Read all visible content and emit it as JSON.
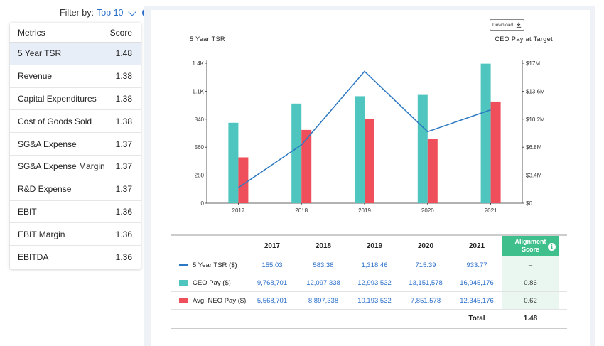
{
  "filter": {
    "label": "Filter by:",
    "value": "Top 10",
    "info": "i"
  },
  "metrics": {
    "header_metric": "Metrics",
    "header_score": "Score",
    "rows": [
      {
        "name": "5 Year TSR",
        "score": "1.48"
      },
      {
        "name": "Revenue",
        "score": "1.38"
      },
      {
        "name": "Capital Expenditures",
        "score": "1.38"
      },
      {
        "name": "Cost of Goods Sold",
        "score": "1.38"
      },
      {
        "name": "SG&A Expense",
        "score": "1.37"
      },
      {
        "name": "SG&A Expense Margin",
        "score": "1.37"
      },
      {
        "name": "R&D Expense",
        "score": "1.37"
      },
      {
        "name": "EBIT",
        "score": "1.36"
      },
      {
        "name": "EBIT Margin",
        "score": "1.36"
      },
      {
        "name": "EBITDA",
        "score": "1.36"
      }
    ]
  },
  "download_label": "Download",
  "chart_titles": {
    "left": "5 Year TSR",
    "right": "CEO Pay at Target"
  },
  "chart_data": {
    "type": "bar",
    "categories": [
      "2017",
      "2018",
      "2019",
      "2020",
      "2021"
    ],
    "left_axis": {
      "ticks": [
        "0",
        "280",
        "560",
        "840",
        "1.1K",
        "1.4K"
      ],
      "range": [
        0,
        1400
      ]
    },
    "right_axis": {
      "ticks": [
        "$0",
        "$3.4M",
        "$6.8M",
        "$10.2M",
        "$13.6M",
        "$17M"
      ],
      "range": [
        0,
        17000000
      ]
    },
    "series": [
      {
        "name": "CEO Pay ($)",
        "type": "bar",
        "axis": "right",
        "color": "#4ec5be",
        "values": [
          9768701,
          12097338,
          12993532,
          13151578,
          16945176
        ]
      },
      {
        "name": "Avg. NEO Pay ($)",
        "type": "bar",
        "axis": "right",
        "color": "#ee4f5a",
        "values": [
          5568701,
          8897338,
          10193532,
          7851578,
          12345176
        ]
      },
      {
        "name": "5 Year TSR ($)",
        "type": "line",
        "axis": "left",
        "color": "#2c78c2",
        "values": [
          155.03,
          583.38,
          1318.46,
          715.39,
          933.77
        ]
      }
    ]
  },
  "table": {
    "years": [
      "2017",
      "2018",
      "2019",
      "2020",
      "2021"
    ],
    "alignment_header": "Alignment Score",
    "rows": [
      {
        "label": "5 Year TSR ($)",
        "swatch": "line",
        "values": [
          "155.03",
          "583.38",
          "1,318.46",
          "715.39",
          "933.77"
        ],
        "score": "–"
      },
      {
        "label": "CEO Pay ($)",
        "swatch": "teal",
        "values": [
          "9,768,701",
          "12,097,338",
          "12,993,532",
          "13,151,578",
          "16,945,176"
        ],
        "score": "0.86"
      },
      {
        "label": "Avg. NEO Pay ($)",
        "swatch": "red",
        "values": [
          "5,568,701",
          "8,897,338",
          "10,193,532",
          "7,851,578",
          "12,345,176"
        ],
        "score": "0.62"
      }
    ],
    "total_label": "Total",
    "total_value": "1.48"
  }
}
